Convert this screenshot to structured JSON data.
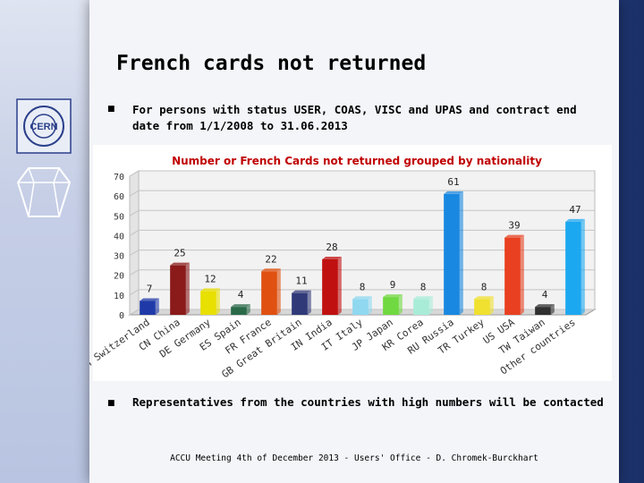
{
  "slide": {
    "title": "French cards not returned",
    "bullet1": "For persons with status USER, COAS, VISC and UPAS and contract end",
    "bullet1_line2": "date from 1/1/2008 to 31.06.2013",
    "bullet2": "Representatives from the countries with high numbers will be contacted",
    "footer": "ACCU Meeting 4th of December 2013 - Users' Office - D. Chromek-Burckhart",
    "logo_text": "CERN"
  },
  "chart_data": {
    "type": "bar",
    "title": "Number or French Cards not returned grouped by nationality",
    "categories": [
      "CH Switzerland",
      "CN China",
      "DE Germany",
      "ES Spain",
      "FR France",
      "GB Great Britain",
      "IN India",
      "IT Italy",
      "JP Japan",
      "KR Corea",
      "RU Russia",
      "TR Turkey",
      "US USA",
      "TW Taiwan",
      "Other countries"
    ],
    "values": [
      7,
      25,
      12,
      4,
      22,
      11,
      28,
      8,
      9,
      8,
      61,
      8,
      39,
      4,
      47
    ],
    "ylim": [
      0,
      70
    ],
    "yticks": [
      0,
      10,
      20,
      30,
      40,
      50,
      60,
      70
    ],
    "colors": [
      "#1f3aa8",
      "#8b1a1a",
      "#e8e000",
      "#2a6a48",
      "#e05010",
      "#303a78",
      "#c01010",
      "#8fd8f0",
      "#70d840",
      "#a8ecd8",
      "#1888e0",
      "#f0e030",
      "#e84020",
      "#303030",
      "#1ca8f0"
    ],
    "grid": true,
    "legend": "none"
  }
}
